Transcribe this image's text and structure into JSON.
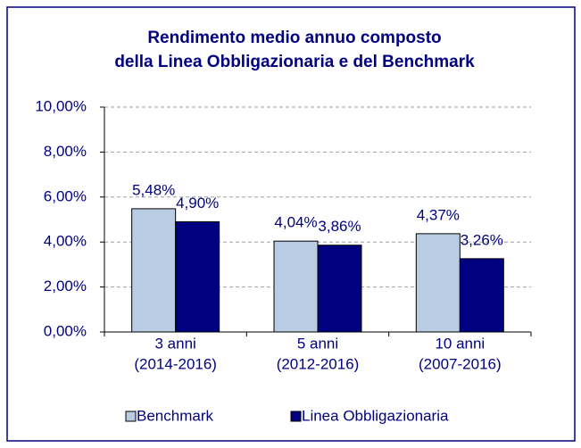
{
  "chart_data": {
    "type": "bar",
    "title": [
      "Rendimento medio annuo composto",
      "della Linea Obbligazionaria e del Benchmark"
    ],
    "categories": [
      [
        "3 anni",
        "(2014-2016)"
      ],
      [
        "5 anni",
        "(2012-2016)"
      ],
      [
        "10 anni",
        "(2007-2016)"
      ]
    ],
    "series": [
      {
        "name": "Benchmark",
        "color": "#b8cce4",
        "values": [
          5.48,
          4.04,
          4.37
        ],
        "value_labels": [
          "5,48%",
          "4,04%",
          "4,37%"
        ]
      },
      {
        "name": "Linea Obbligazionaria",
        "color": "#000080",
        "values": [
          4.9,
          3.86,
          3.26
        ],
        "value_labels": [
          "4,90%",
          "3,86%",
          "3,26%"
        ]
      }
    ],
    "ylim": [
      0,
      10
    ],
    "yticks": [
      {
        "value": 0,
        "label": "0,00%"
      },
      {
        "value": 2,
        "label": "2,00%"
      },
      {
        "value": 4,
        "label": "4,00%"
      },
      {
        "value": 6,
        "label": "6,00%"
      },
      {
        "value": 8,
        "label": "8,00%"
      },
      {
        "value": 10,
        "label": "10,00%"
      }
    ],
    "grid": true,
    "legend": "bottom"
  }
}
